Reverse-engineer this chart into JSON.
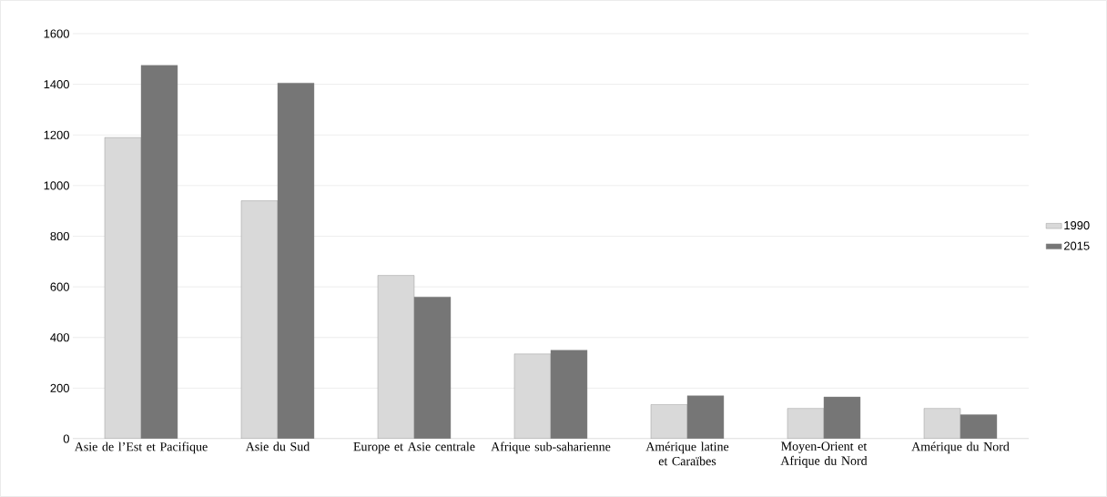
{
  "chart_data": {
    "type": "bar",
    "categories": [
      "Asie de l’Est et Pacifique",
      "Asie du Sud",
      "Europe et Asie centrale",
      "Afrique sub-saharienne",
      "Amérique latine et Caraïbes",
      "Moyen-Orient et Afrique du Nord",
      "Amérique du Nord"
    ],
    "series": [
      {
        "name": "1990",
        "color": "#d9d9d9",
        "values": [
          1190,
          940,
          645,
          335,
          135,
          120,
          120
        ]
      },
      {
        "name": "2015",
        "color": "#767676",
        "values": [
          1475,
          1405,
          560,
          350,
          170,
          165,
          95
        ]
      }
    ],
    "ylim": [
      0,
      1600
    ],
    "yticks": [
      0,
      200,
      400,
      600,
      800,
      1000,
      1200,
      1400,
      1600
    ],
    "grid": "y",
    "legend": "right"
  }
}
